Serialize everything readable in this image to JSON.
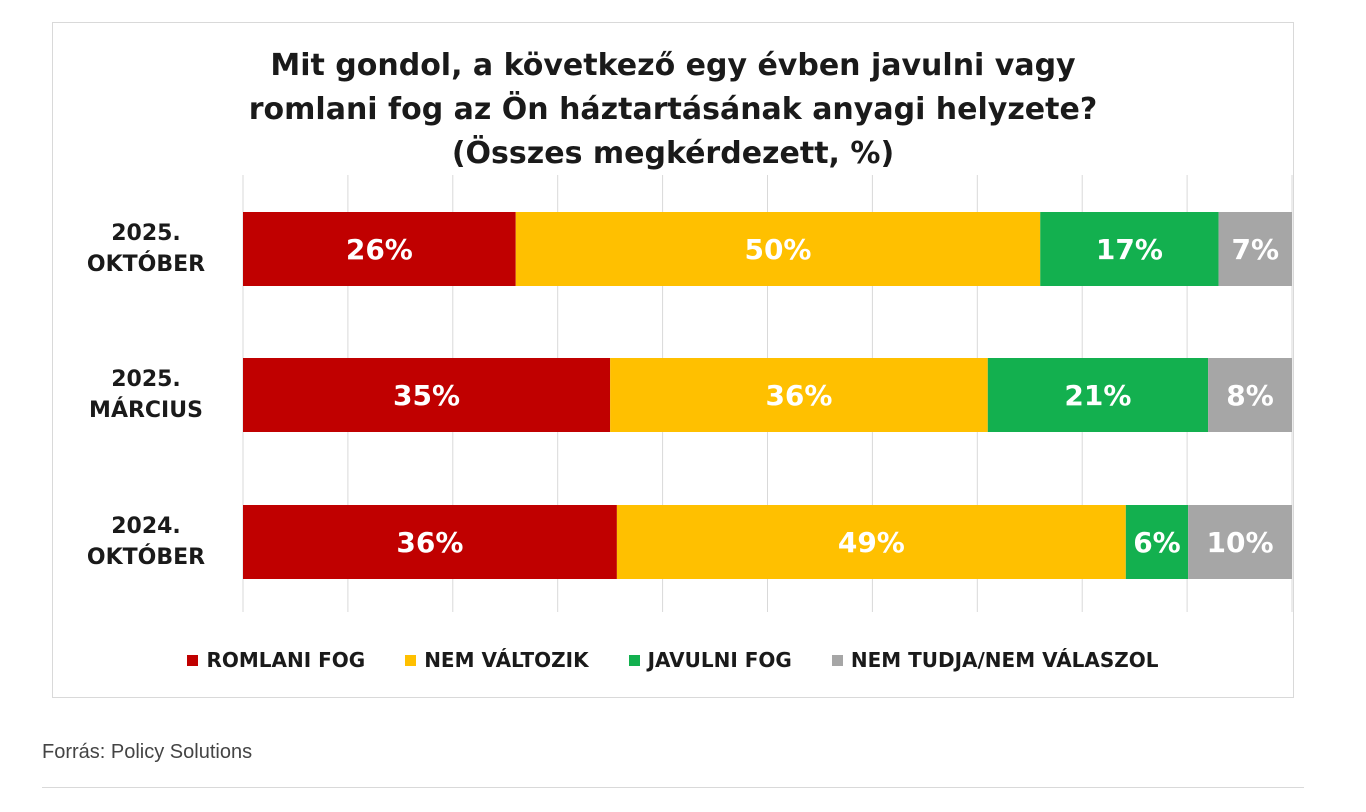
{
  "chart_data": {
    "type": "bar",
    "orientation": "horizontal",
    "stacked": true,
    "title_lines": [
      "Mit gondol, a következő egy évben javulni vagy",
      "romlani fog az Ön háztartásának anyagi helyzete?",
      "(Összes megkérdezett, %)"
    ],
    "categories": [
      [
        "2025.",
        "OKTÓBER"
      ],
      [
        "2025.",
        "MÁRCIUS"
      ],
      [
        "2024.",
        "OKTÓBER"
      ]
    ],
    "series": [
      {
        "name": "ROMLANI FOG",
        "color": "#c00000",
        "values": [
          26,
          35,
          36
        ]
      },
      {
        "name": "NEM VÁLTOZIK",
        "color": "#ffc000",
        "values": [
          50,
          36,
          49
        ]
      },
      {
        "name": "JAVULNI FOG",
        "color": "#13b04f",
        "values": [
          17,
          21,
          6
        ]
      },
      {
        "name": "NEM TUDJA/NEM VÁLASZOL",
        "color": "#a6a6a6",
        "values": [
          7,
          8,
          10
        ]
      }
    ],
    "value_labels": [
      [
        "26%",
        "50%",
        "17%",
        "7%"
      ],
      [
        "35%",
        "36%",
        "21%",
        "8%"
      ],
      [
        "36%",
        "49%",
        "6%",
        "10%"
      ]
    ],
    "xlim": [
      0,
      100
    ],
    "grid": true,
    "legend_position": "bottom"
  },
  "source": "Forrás: Policy Solutions"
}
